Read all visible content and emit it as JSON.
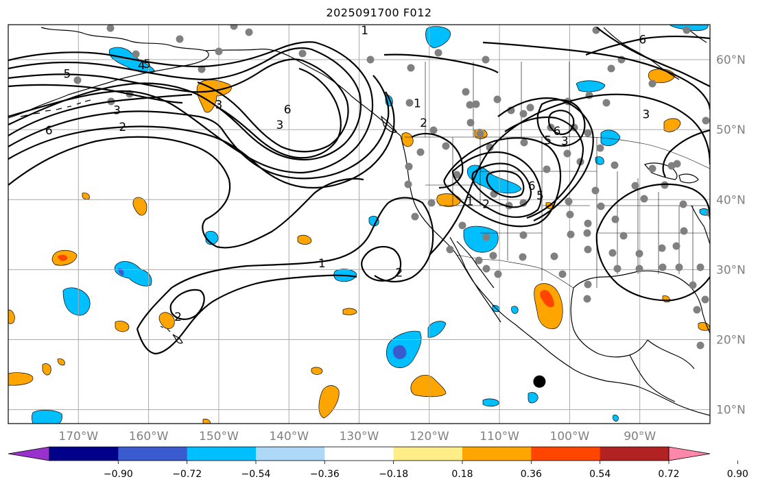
{
  "title": "2025091700 F012",
  "map": {
    "extent_lon": [
      -180,
      -80
    ],
    "extent_lat": [
      8,
      65
    ],
    "longitude_ticks": [
      {
        "value": -170,
        "label": "170°W"
      },
      {
        "value": -160,
        "label": "160°W"
      },
      {
        "value": -150,
        "label": "150°W"
      },
      {
        "value": -140,
        "label": "140°W"
      },
      {
        "value": -130,
        "label": "130°W"
      },
      {
        "value": -120,
        "label": "120°W"
      },
      {
        "value": -110,
        "label": "110°W"
      },
      {
        "value": -100,
        "label": "100°W"
      },
      {
        "value": -90,
        "label": "90°W"
      }
    ],
    "latitude_ticks": [
      {
        "value": 10,
        "label": "10°N"
      },
      {
        "value": 20,
        "label": "20°N"
      },
      {
        "value": 30,
        "label": "30°N"
      },
      {
        "value": 40,
        "label": "40°N"
      },
      {
        "value": 50,
        "label": "50°N"
      },
      {
        "value": 60,
        "label": "60°N"
      }
    ],
    "grid": true,
    "storm_marker": {
      "lon": -104.3,
      "lat": 14.0,
      "color": "#000000"
    },
    "station_color": "#808080",
    "contour_color": "#000000"
  },
  "colorbar": {
    "ticks": [
      "−0.90",
      "−0.72",
      "−0.54",
      "−0.36",
      "−0.18",
      "0.18",
      "0.36",
      "0.54",
      "0.72",
      "0.90"
    ],
    "colors": [
      "#9932cc",
      "#00008b",
      "#3a5bd0",
      "#00bfff",
      "#add8f8",
      "#ffffff",
      "#ffee88",
      "#ffa500",
      "#ff4500",
      "#b22222",
      "#ff88aa"
    ],
    "extend": "both"
  },
  "contour_labels": [
    {
      "text": "1",
      "lon": -129.2,
      "lat": 64.2
    },
    {
      "text": "5",
      "lon": -171.6,
      "lat": 58.0
    },
    {
      "text": "4",
      "lon": -161.0,
      "lat": 59.2
    },
    {
      "text": "5",
      "lon": -160.2,
      "lat": 59.4
    },
    {
      "text": "3",
      "lon": -164.5,
      "lat": 52.8
    },
    {
      "text": "3",
      "lon": -150.0,
      "lat": 53.6
    },
    {
      "text": "2",
      "lon": -163.7,
      "lat": 50.4
    },
    {
      "text": "6",
      "lon": -174.2,
      "lat": 49.9
    },
    {
      "text": "6",
      "lon": -140.2,
      "lat": 52.9
    },
    {
      "text": "3",
      "lon": -141.3,
      "lat": 50.7
    },
    {
      "text": "1",
      "lon": -135.3,
      "lat": 30.9
    },
    {
      "text": "2",
      "lon": -124.3,
      "lat": 29.6
    },
    {
      "text": "2",
      "lon": -155.8,
      "lat": 23.3
    },
    {
      "text": "1",
      "lon": -121.7,
      "lat": 53.8
    },
    {
      "text": "2",
      "lon": -120.8,
      "lat": 51.0
    },
    {
      "text": "6",
      "lon": -101.8,
      "lat": 49.8
    },
    {
      "text": "5",
      "lon": -103.1,
      "lat": 48.5
    },
    {
      "text": "3",
      "lon": -100.7,
      "lat": 48.4
    },
    {
      "text": "6",
      "lon": -105.4,
      "lat": 42.0
    },
    {
      "text": "5",
      "lon": -104.2,
      "lat": 40.6
    },
    {
      "text": "1",
      "lon": -114.2,
      "lat": 39.8
    },
    {
      "text": "2",
      "lon": -111.9,
      "lat": 39.4
    },
    {
      "text": "6",
      "lon": -89.6,
      "lat": 62.9
    },
    {
      "text": "3",
      "lon": -89.1,
      "lat": 52.2
    }
  ]
}
